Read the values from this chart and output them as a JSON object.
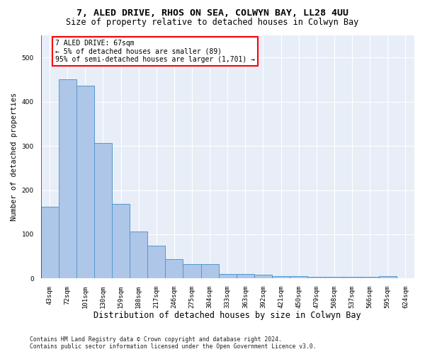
{
  "title": "7, ALED DRIVE, RHOS ON SEA, COLWYN BAY, LL28 4UU",
  "subtitle": "Size of property relative to detached houses in Colwyn Bay",
  "xlabel": "Distribution of detached houses by size in Colwyn Bay",
  "ylabel": "Number of detached properties",
  "bar_values": [
    163,
    450,
    436,
    307,
    168,
    106,
    74,
    44,
    32,
    32,
    10,
    10,
    9,
    5,
    5,
    4,
    4,
    4,
    4,
    5
  ],
  "bar_labels": [
    "43sqm",
    "72sqm",
    "101sqm",
    "130sqm",
    "159sqm",
    "188sqm",
    "217sqm",
    "246sqm",
    "275sqm",
    "304sqm",
    "333sqm",
    "363sqm",
    "392sqm",
    "421sqm",
    "450sqm",
    "479sqm",
    "508sqm",
    "537sqm",
    "566sqm",
    "595sqm",
    "624sqm"
  ],
  "bar_color": "#aec6e8",
  "bar_edge_color": "#5599cc",
  "annotation_line1": "7 ALED DRIVE: 67sqm",
  "annotation_line2": "← 5% of detached houses are smaller (89)",
  "annotation_line3": "95% of semi-detached houses are larger (1,701) →",
  "annotation_box_facecolor": "white",
  "annotation_box_edgecolor": "red",
  "vline_color": "red",
  "ylim_max": 550,
  "bg_color": "#e8eef8",
  "footnote_line1": "Contains HM Land Registry data © Crown copyright and database right 2024.",
  "footnote_line2": "Contains public sector information licensed under the Open Government Licence v3.0.",
  "title_fontsize": 9.5,
  "subtitle_fontsize": 8.5,
  "xlabel_fontsize": 8.5,
  "ylabel_fontsize": 7.5,
  "tick_fontsize": 6.5,
  "annot_fontsize": 7.0,
  "footnote_fontsize": 5.8
}
